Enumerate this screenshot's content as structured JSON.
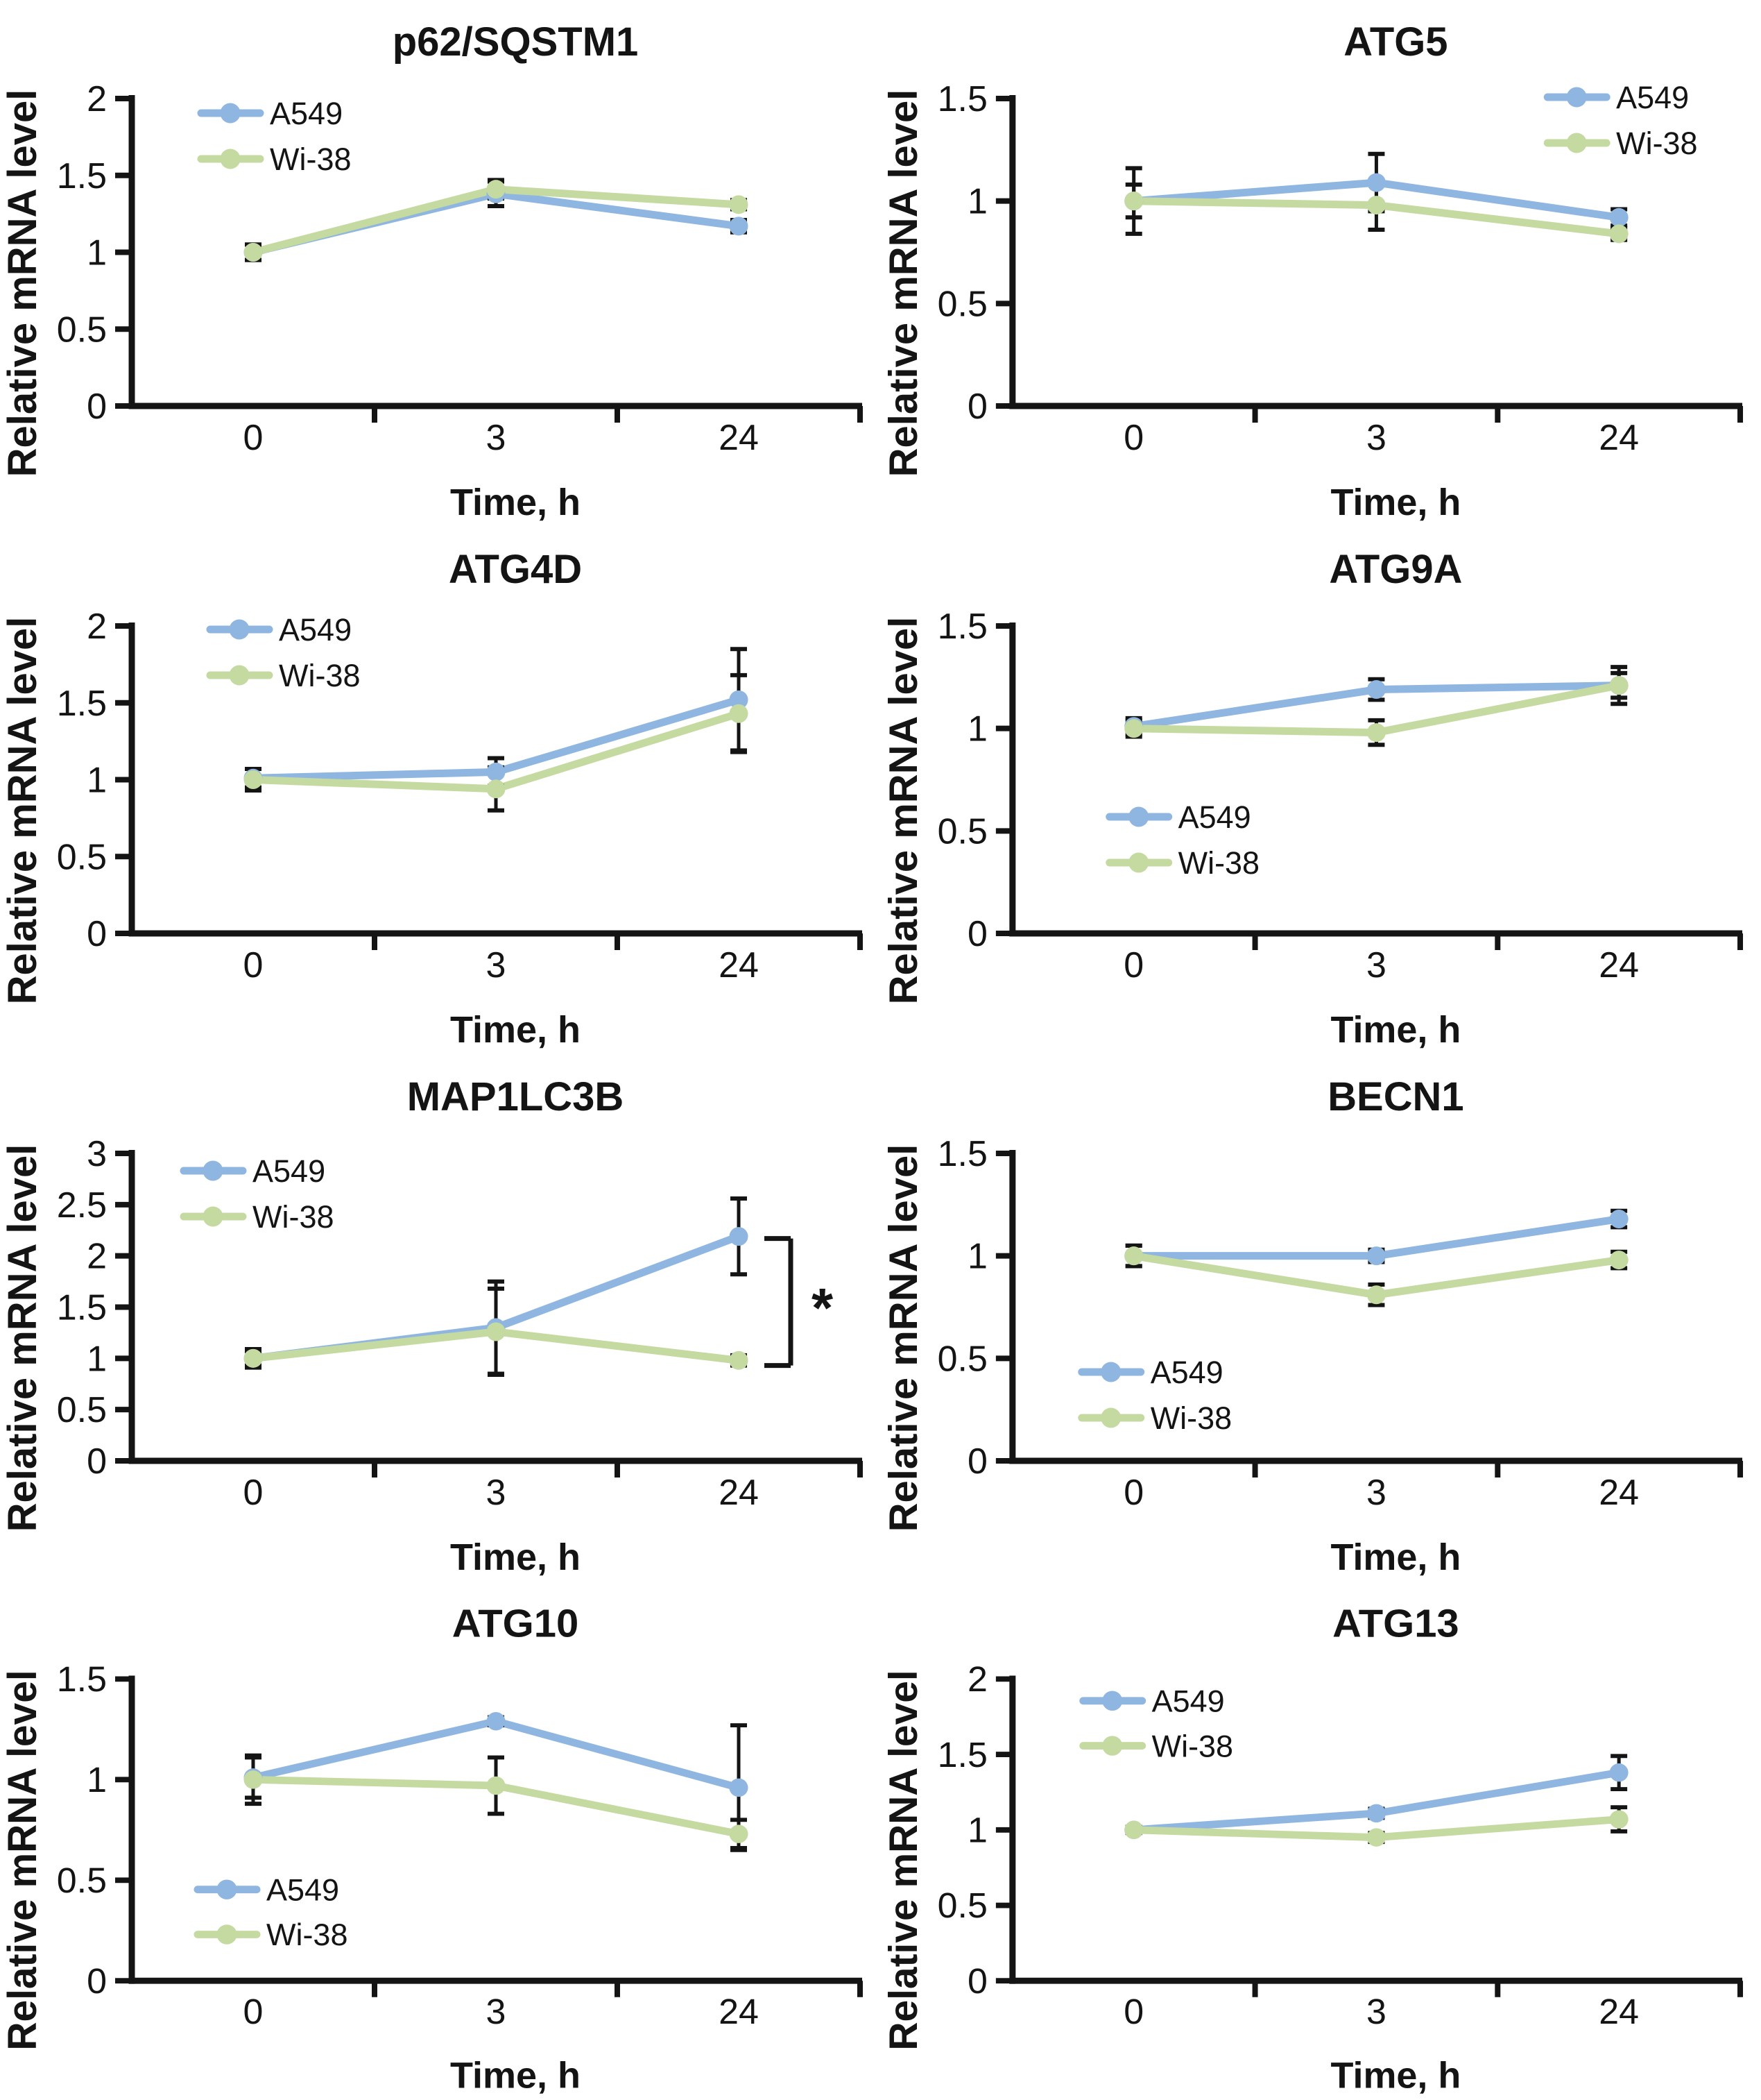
{
  "figure": {
    "y_axis_label": "Relative mRNA level",
    "x_axis_label": "Time, h",
    "legend_labels": [
      "A549",
      "Wi-38"
    ],
    "colors": {
      "a549": "#8fb5e1",
      "wi38": "#c5daa0",
      "axis": "#141414",
      "error_bar": "#141414",
      "text": "#141414",
      "background": "#ffffff"
    }
  },
  "chart_data": [
    {
      "type": "line",
      "title": "p62/SQSTM1",
      "categories": [
        "0",
        "3",
        "24"
      ],
      "xlabel": "Time, h",
      "ylabel": "Relative mRNA level",
      "ylim": [
        0,
        2
      ],
      "ytick_step": 0.5,
      "grid": false,
      "legend_position": "top-left",
      "legend_xy": {
        "x": 290,
        "y": 163
      },
      "series": [
        {
          "name": "A549",
          "color": "#8fb5e1",
          "values": [
            1.0,
            1.38,
            1.17
          ],
          "errors": [
            0.05,
            0.08,
            0.04
          ]
        },
        {
          "name": "Wi-38",
          "color": "#c5daa0",
          "values": [
            1.0,
            1.41,
            1.31
          ],
          "errors": [
            0.05,
            0.06,
            0.03
          ]
        }
      ],
      "annotation": null
    },
    {
      "type": "line",
      "title": "ATG5",
      "categories": [
        "0",
        "3",
        "24"
      ],
      "xlabel": "Time, h",
      "ylabel": "Relative mRNA level",
      "ylim": [
        0,
        1.5
      ],
      "ytick_step": 0.5,
      "grid": false,
      "legend_position": "top-right",
      "legend_xy": {
        "x": 962,
        "y": 140
      },
      "series": [
        {
          "name": "A549",
          "color": "#8fb5e1",
          "values": [
            1.0,
            1.09,
            0.92
          ],
          "errors": [
            0.08,
            0.14,
            0.04
          ]
        },
        {
          "name": "Wi-38",
          "color": "#c5daa0",
          "values": [
            1.0,
            0.98,
            0.84
          ],
          "errors": [
            0.16,
            0.12,
            0.03
          ]
        }
      ],
      "annotation": null
    },
    {
      "type": "line",
      "title": "ATG4D",
      "categories": [
        "0",
        "3",
        "24"
      ],
      "xlabel": "Time, h",
      "ylabel": "Relative mRNA level",
      "ylim": [
        0,
        2
      ],
      "ytick_step": 0.5,
      "grid": false,
      "legend_position": "top-left",
      "legend_xy": {
        "x": 303,
        "y": 147
      },
      "series": [
        {
          "name": "A549",
          "color": "#8fb5e1",
          "values": [
            1.01,
            1.05,
            1.52
          ],
          "errors": [
            0.06,
            0.09,
            0.33
          ]
        },
        {
          "name": "Wi-38",
          "color": "#c5daa0",
          "values": [
            1.0,
            0.94,
            1.43
          ],
          "errors": [
            0.07,
            0.14,
            0.25
          ]
        }
      ],
      "annotation": null
    },
    {
      "type": "line",
      "title": "ATG9A",
      "categories": [
        "0",
        "3",
        "24"
      ],
      "xlabel": "Time, h",
      "ylabel": "Relative mRNA level",
      "ylim": [
        0,
        1.5
      ],
      "ytick_step": 0.5,
      "grid": false,
      "legend_position": "middle-left",
      "legend_xy": {
        "x": 330,
        "y": 417
      },
      "series": [
        {
          "name": "A549",
          "color": "#8fb5e1",
          "values": [
            1.01,
            1.19,
            1.21
          ],
          "errors": [
            0.04,
            0.05,
            0.06
          ]
        },
        {
          "name": "Wi-38",
          "color": "#c5daa0",
          "values": [
            1.0,
            0.98,
            1.21
          ],
          "errors": [
            0.04,
            0.06,
            0.09
          ]
        }
      ],
      "annotation": null
    },
    {
      "type": "line",
      "title": "MAP1LC3B",
      "categories": [
        "0",
        "3",
        "24"
      ],
      "xlabel": "Time, h",
      "ylabel": "Relative mRNA level",
      "ylim": [
        0,
        3
      ],
      "ytick_step": 0.5,
      "grid": false,
      "legend_position": "top-left",
      "legend_xy": {
        "x": 265,
        "y": 167
      },
      "series": [
        {
          "name": "A549",
          "color": "#8fb5e1",
          "values": [
            1.0,
            1.3,
            2.19
          ],
          "errors": [
            0.09,
            0.45,
            0.37
          ]
        },
        {
          "name": "Wi-38",
          "color": "#c5daa0",
          "values": [
            1.0,
            1.26,
            0.98
          ],
          "errors": [
            0.07,
            0.42,
            0.05
          ]
        }
      ],
      "annotation": {
        "type": "significance-bracket",
        "label": "*",
        "x": 1140,
        "y_top_value": 2.17,
        "y_bottom_value": 0.93,
        "arm_length": 38
      }
    },
    {
      "type": "line",
      "title": "BECN1",
      "categories": [
        "0",
        "3",
        "24"
      ],
      "xlabel": "Time, h",
      "ylabel": "Relative mRNA level",
      "ylim": [
        0,
        1.5
      ],
      "ytick_step": 0.5,
      "grid": false,
      "legend_position": "bottom-left",
      "legend_xy": {
        "x": 290,
        "y": 457
      },
      "series": [
        {
          "name": "A549",
          "color": "#8fb5e1",
          "values": [
            1.0,
            1.0,
            1.18
          ],
          "errors": [
            0.05,
            0.03,
            0.04
          ]
        },
        {
          "name": "Wi-38",
          "color": "#c5daa0",
          "values": [
            1.0,
            0.81,
            0.98
          ],
          "errors": [
            0.05,
            0.05,
            0.04
          ]
        }
      ],
      "annotation": null
    },
    {
      "type": "line",
      "title": "ATG10",
      "categories": [
        "0",
        "3",
        "24"
      ],
      "xlabel": "Time, h",
      "ylabel": "Relative mRNA level",
      "ylim": [
        0,
        1.5
      ],
      "ytick_step": 0.5,
      "grid": false,
      "legend_position": "bottom-left",
      "legend_xy": {
        "x": 285,
        "y": 451
      },
      "series": [
        {
          "name": "A549",
          "color": "#8fb5e1",
          "values": [
            1.01,
            1.29,
            0.96
          ],
          "errors": [
            0.1,
            0.02,
            0.31
          ]
        },
        {
          "name": "Wi-38",
          "color": "#c5daa0",
          "values": [
            1.0,
            0.97,
            0.73
          ],
          "errors": [
            0.12,
            0.14,
            0.07
          ]
        }
      ],
      "annotation": null
    },
    {
      "type": "line",
      "title": "ATG13",
      "categories": [
        "0",
        "3",
        "24"
      ],
      "xlabel": "Time, h",
      "ylabel": "Relative mRNA level",
      "ylim": [
        0,
        2
      ],
      "ytick_step": 0.5,
      "grid": false,
      "legend_position": "top-left",
      "legend_xy": {
        "x": 292,
        "y": 174
      },
      "series": [
        {
          "name": "A549",
          "color": "#8fb5e1",
          "values": [
            1.0,
            1.11,
            1.38
          ],
          "errors": [
            0.02,
            0.03,
            0.11
          ]
        },
        {
          "name": "Wi-38",
          "color": "#c5daa0",
          "values": [
            1.0,
            0.95,
            1.07
          ],
          "errors": [
            0.02,
            0.03,
            0.08
          ]
        }
      ],
      "annotation": null
    }
  ]
}
